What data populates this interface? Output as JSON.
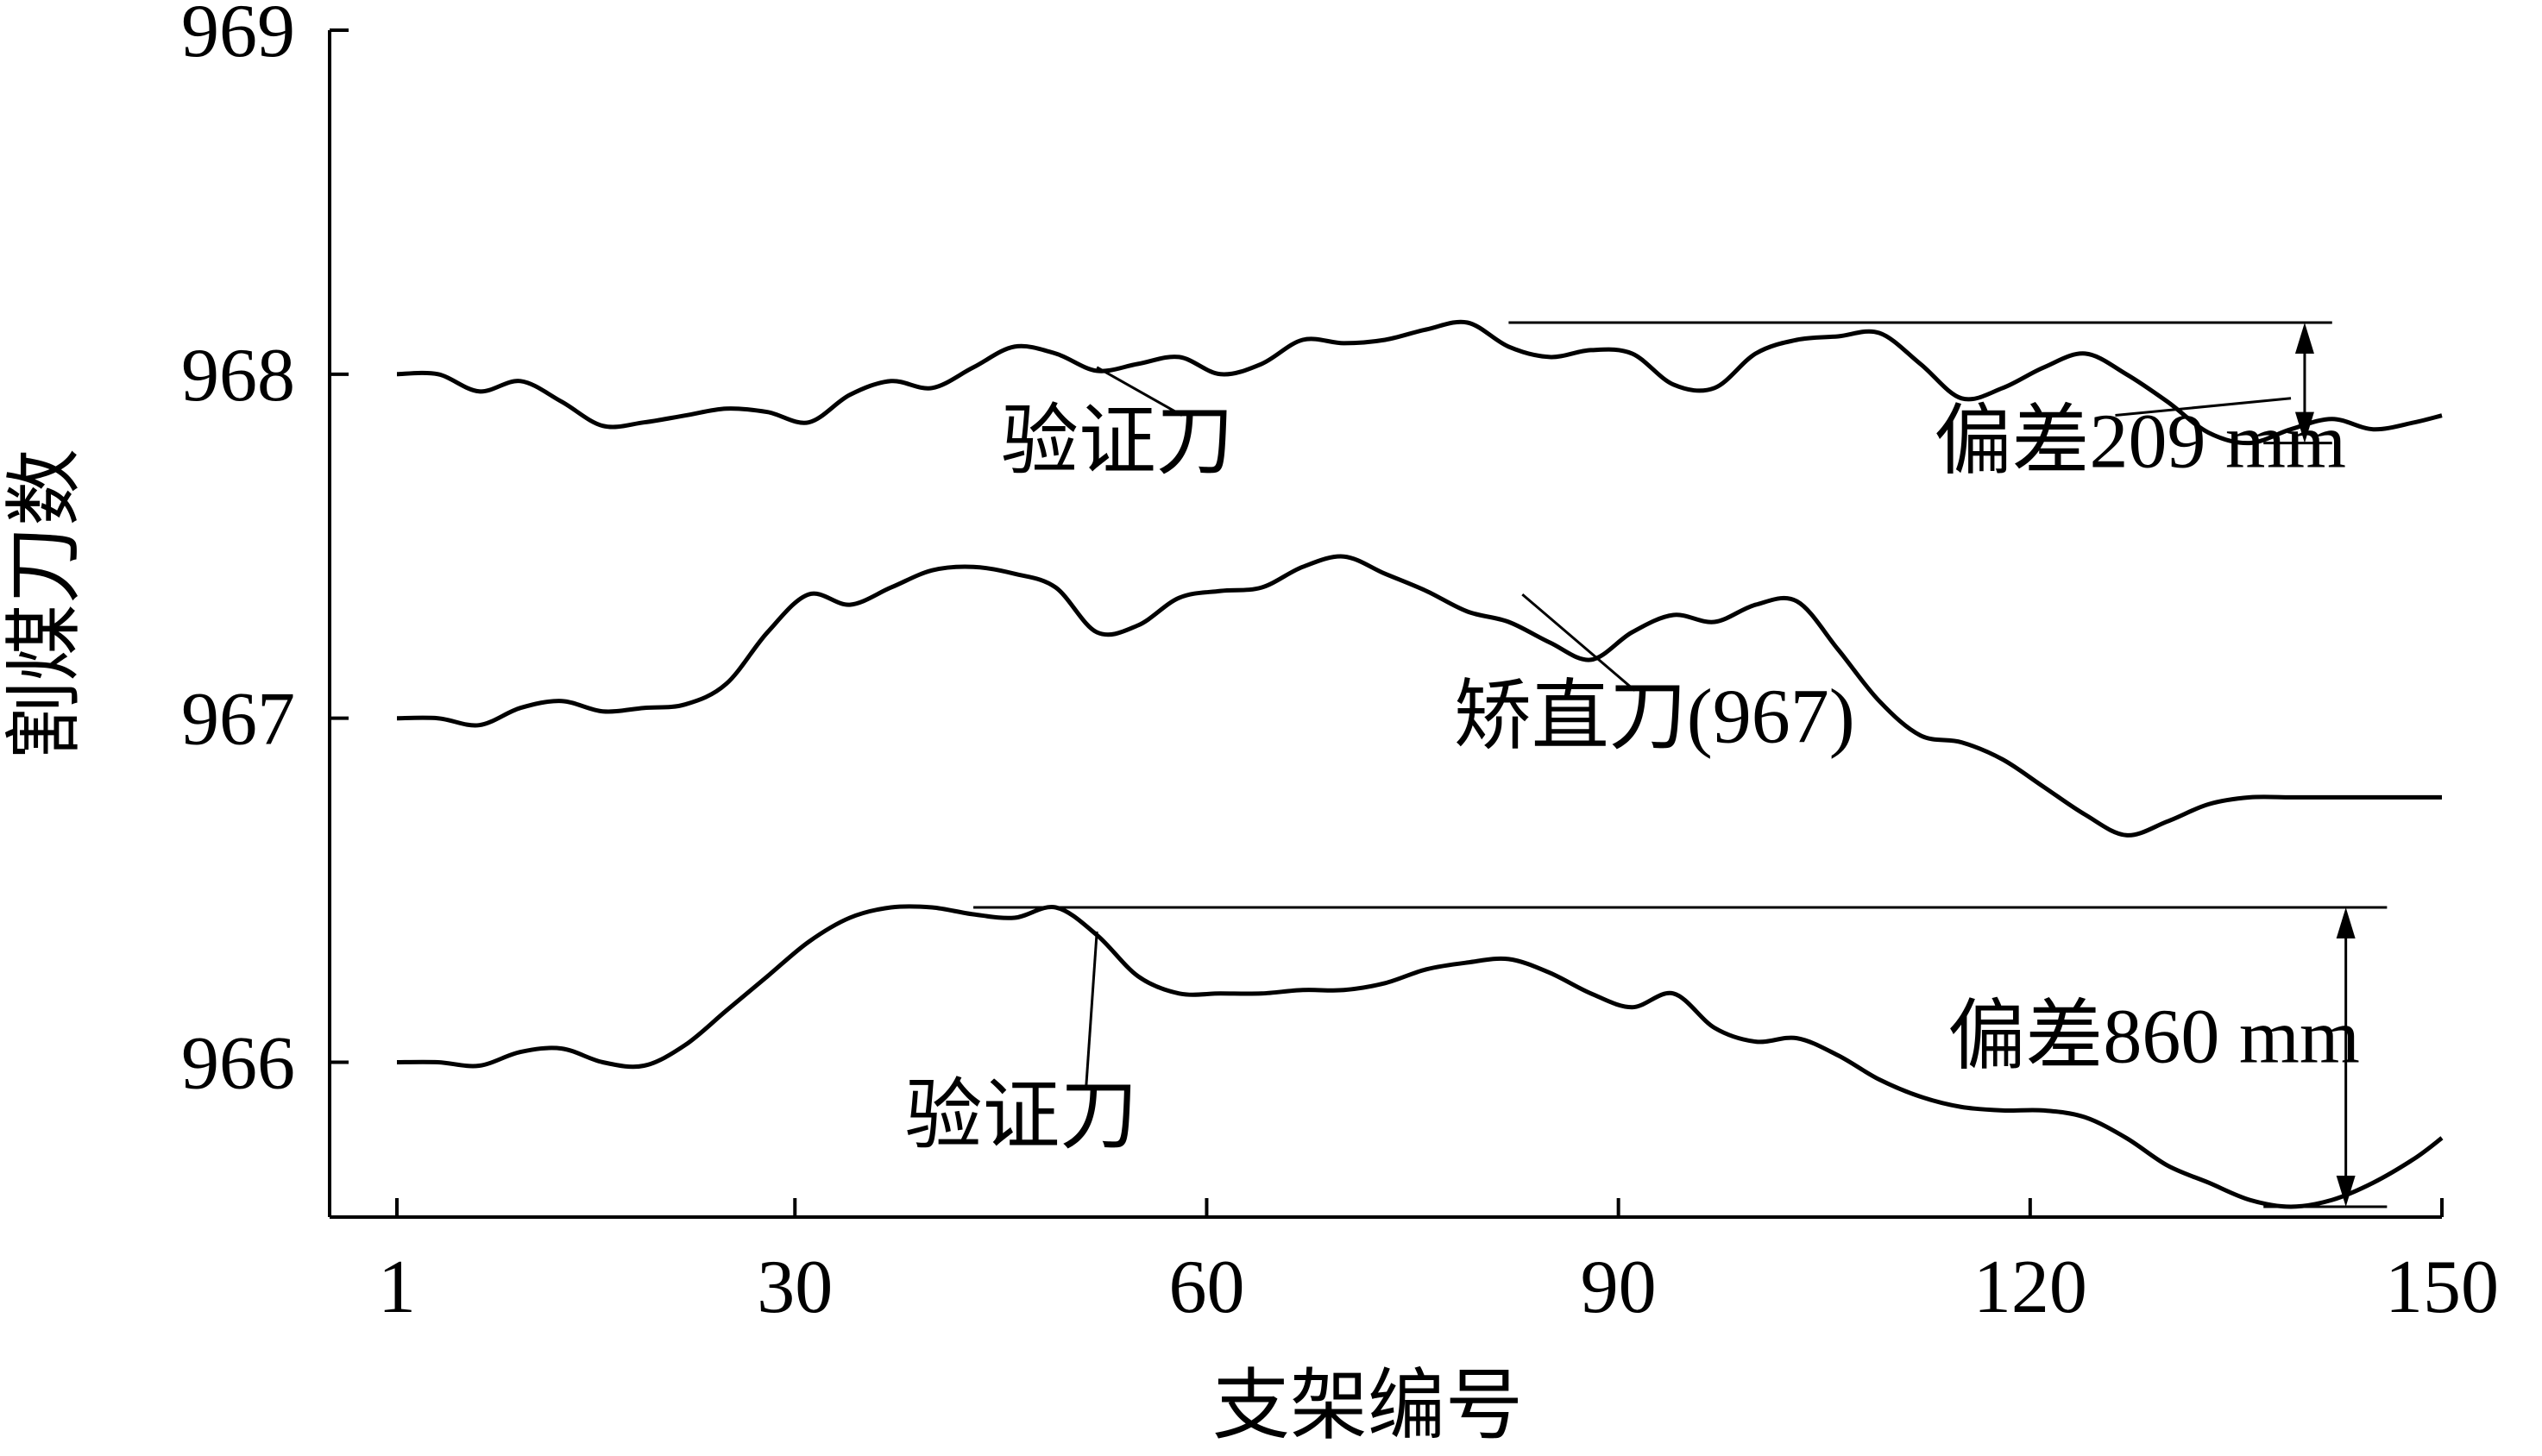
{
  "chart_data": {
    "type": "line",
    "title": "",
    "xlabel": "支架编号",
    "ylabel": "割煤刀数",
    "xlim": [
      1,
      150
    ],
    "ylim": [
      965.55,
      969
    ],
    "x_ticks": [
      1,
      30,
      60,
      90,
      120,
      150
    ],
    "y_ticks": [
      966,
      967,
      968,
      969
    ],
    "colors": {
      "line": "#000000",
      "background": "#ffffff"
    },
    "grid": false,
    "legend": "none",
    "series": [
      {
        "name": "验证刀",
        "x": [
          1,
          4,
          7,
          10,
          13,
          16,
          19,
          22,
          25,
          28,
          31,
          34,
          37,
          40,
          43,
          46,
          49,
          52,
          55,
          58,
          61,
          64,
          67,
          70,
          73,
          76,
          79,
          82,
          85,
          88,
          91,
          94,
          97,
          100,
          103,
          106,
          109,
          112,
          115,
          118,
          121,
          124,
          127,
          130,
          133,
          136,
          139,
          142,
          145,
          148,
          150
        ],
        "values": [
          968.0,
          968.0,
          967.95,
          967.98,
          967.92,
          967.85,
          967.86,
          967.88,
          967.9,
          967.89,
          967.86,
          967.94,
          967.98,
          967.96,
          968.02,
          968.08,
          968.06,
          968.01,
          968.03,
          968.05,
          968.0,
          968.03,
          968.1,
          968.09,
          968.1,
          968.13,
          968.15,
          968.08,
          968.05,
          968.07,
          968.06,
          967.97,
          967.96,
          968.06,
          968.1,
          968.11,
          968.12,
          968.03,
          967.93,
          967.96,
          968.02,
          968.06,
          968.0,
          967.92,
          967.83,
          967.8,
          967.84,
          967.87,
          967.84,
          967.86,
          967.88
        ]
      },
      {
        "name": "矫直刀(967)",
        "x": [
          1,
          4,
          7,
          10,
          13,
          16,
          19,
          22,
          25,
          28,
          31,
          34,
          37,
          40,
          43,
          46,
          49,
          52,
          55,
          58,
          61,
          64,
          67,
          70,
          73,
          76,
          79,
          82,
          85,
          88,
          91,
          94,
          97,
          100,
          103,
          106,
          109,
          112,
          115,
          118,
          121,
          124,
          127,
          130,
          133,
          136,
          139,
          142,
          145,
          148,
          150
        ],
        "values": [
          967.0,
          967.0,
          966.98,
          967.03,
          967.05,
          967.02,
          967.03,
          967.04,
          967.1,
          967.25,
          967.36,
          967.33,
          967.38,
          967.43,
          967.44,
          967.42,
          967.38,
          967.25,
          967.27,
          967.35,
          967.37,
          967.38,
          967.44,
          967.47,
          967.42,
          967.37,
          967.31,
          967.28,
          967.22,
          967.17,
          967.25,
          967.3,
          967.28,
          967.33,
          967.34,
          967.2,
          967.05,
          966.95,
          966.93,
          966.88,
          966.8,
          966.72,
          966.66,
          966.7,
          966.75,
          966.77,
          966.77,
          966.77,
          966.77,
          966.77,
          966.77
        ]
      },
      {
        "name": "验证刀",
        "x": [
          1,
          4,
          7,
          10,
          13,
          16,
          19,
          22,
          25,
          28,
          31,
          34,
          37,
          40,
          43,
          46,
          49,
          52,
          55,
          58,
          61,
          64,
          67,
          70,
          73,
          76,
          79,
          82,
          85,
          88,
          91,
          94,
          97,
          100,
          103,
          106,
          109,
          112,
          115,
          118,
          121,
          124,
          127,
          130,
          133,
          136,
          139,
          142,
          145,
          148,
          150
        ],
        "values": [
          966.0,
          966.0,
          965.99,
          966.03,
          966.04,
          966.0,
          965.99,
          966.05,
          966.15,
          966.25,
          966.35,
          966.42,
          966.45,
          966.45,
          966.43,
          966.42,
          966.45,
          966.37,
          966.25,
          966.2,
          966.2,
          966.2,
          966.21,
          966.21,
          966.23,
          966.27,
          966.29,
          966.3,
          966.26,
          966.2,
          966.16,
          966.2,
          966.1,
          966.06,
          966.07,
          966.02,
          965.95,
          965.9,
          965.87,
          965.86,
          965.86,
          965.84,
          965.78,
          965.7,
          965.65,
          965.6,
          965.58,
          965.6,
          965.65,
          965.72,
          965.78
        ]
      }
    ],
    "reference_lines": [
      {
        "x_range": [
          82,
          142
        ],
        "y": 968.15
      },
      {
        "x_range": [
          43,
          146
        ],
        "y": 966.45
      },
      {
        "x_range": [
          137,
          142
        ],
        "y": 967.8
      },
      {
        "x_range": [
          137,
          146
        ],
        "y": 965.58
      }
    ],
    "deviation_arrows": [
      {
        "x": 140,
        "y_top": 968.15,
        "y_bottom": 967.8,
        "label": "偏差209 mm"
      },
      {
        "x": 143,
        "y_top": 966.45,
        "y_bottom": 965.58,
        "label": "偏差860 mm"
      }
    ],
    "annotations": [
      {
        "text": "验证刀",
        "target_series": 0,
        "target": [
          52,
          968.02
        ],
        "text_anchor": [
          45,
          967.73
        ]
      },
      {
        "text": "矫直刀(967)",
        "target_series": 1,
        "target": [
          83,
          967.36
        ],
        "text_anchor": [
          78,
          966.93
        ]
      },
      {
        "text": "验证刀",
        "target_series": 2,
        "target": [
          52,
          966.38
        ],
        "text_anchor": [
          38,
          965.77
        ]
      },
      {
        "text": "偏差209 mm",
        "target": [
          139,
          967.93
        ],
        "text_anchor": [
          113,
          967.73
        ]
      },
      {
        "text": "偏差860 mm",
        "target": null,
        "text_anchor": [
          114,
          966.0
        ]
      }
    ]
  }
}
